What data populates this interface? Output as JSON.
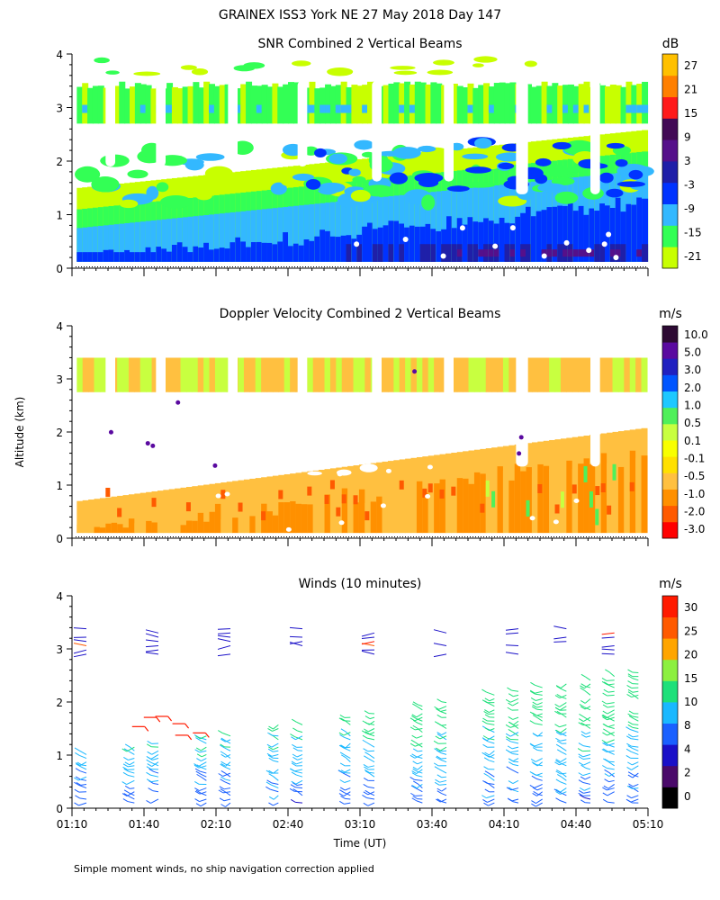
{
  "figure": {
    "title": "GRAINEX ISS3 York NE  27 May 2018 Day 147",
    "footnote": "Simple moment winds, no ship navigation correction applied",
    "xlabel": "Time (UT)",
    "ylabel": "Altitude (km)"
  },
  "chart_data": [
    {
      "type": "heatmap",
      "title": "SNR Combined 2 Vertical Beams",
      "xlabel": "Time (UT)",
      "ylabel": "Altitude (km)",
      "x_range_minutes_ut": [
        70,
        310
      ],
      "ylim": [
        0,
        4
      ],
      "yticks": [
        0,
        1,
        2,
        3,
        4
      ],
      "colorbar": {
        "units": "dB",
        "labels": [
          "27",
          "21",
          "15",
          "9",
          "3",
          "-3",
          "-9",
          "-15",
          "-21"
        ],
        "colors": [
          "#c8ff00",
          "#33ff55",
          "#33b8ff",
          "#0033ff",
          "#1f1fa8",
          "#55108a",
          "#420a55",
          "#ff1a1a",
          "#ff7f00",
          "#ffc000"
        ]
      },
      "gaps_minutes_ut": [
        [
          84,
          88
        ],
        [
          105,
          109
        ],
        [
          135,
          139
        ],
        [
          164,
          168
        ],
        [
          195,
          199
        ],
        [
          225,
          229
        ],
        [
          255,
          260
        ],
        [
          286,
          290
        ]
      ],
      "layers": [
        {
          "name": "upper layer",
          "altitude_km": [
            2.5,
            3.4
          ],
          "snr_db": [
            -15,
            -9
          ]
        },
        {
          "name": "boundary layer",
          "altitude_km": [
            0.1,
            1.4
          ],
          "snr_db": [
            -9,
            9
          ]
        }
      ]
    },
    {
      "type": "heatmap",
      "title": "Doppler Velocity Combined 2 Vertical Beams",
      "xlabel": "Time (UT)",
      "ylabel": "Altitude (km)",
      "x_range_minutes_ut": [
        70,
        310
      ],
      "ylim": [
        0,
        4
      ],
      "yticks": [
        0,
        1,
        2,
        3,
        4
      ],
      "colorbar": {
        "units": "m/s",
        "labels": [
          "10.0",
          "5.0",
          "3.0",
          "2.0",
          "1.0",
          "0.5",
          "0.1",
          "-0.1",
          "-0.5",
          "-1.0",
          "-2.0",
          "-3.0"
        ],
        "colors": [
          "#ff0000",
          "#ff5a00",
          "#ff9000",
          "#ffc040",
          "#ffe000",
          "#f8ff00",
          "#c8ff40",
          "#4ff05a",
          "#1ec8ff",
          "#0055ff",
          "#2020c0",
          "#5a0aa0",
          "#2d0a33"
        ]
      },
      "layers": [
        {
          "name": "upper layer",
          "altitude_km": [
            2.6,
            3.4
          ],
          "velocity_ms": [
            -0.5,
            0.1
          ]
        },
        {
          "name": "boundary layer",
          "altitude_km": [
            0.1,
            1.5
          ],
          "velocity_ms": [
            -2.0,
            0.1
          ]
        }
      ]
    },
    {
      "type": "barbs",
      "title": "Winds (10 minutes)",
      "xlabel": "Time (UT)",
      "ylabel": "Altitude (km)",
      "x_range_minutes_ut": [
        70,
        310
      ],
      "xticks_minutes_ut": [
        70,
        100,
        130,
        160,
        190,
        220,
        250,
        280,
        310
      ],
      "xtick_labels": [
        "01:10",
        "01:40",
        "02:10",
        "02:40",
        "03:10",
        "03:40",
        "04:10",
        "04:40",
        "05:10"
      ],
      "ylim": [
        0,
        4
      ],
      "yticks": [
        0,
        1,
        2,
        3,
        4
      ],
      "colorbar": {
        "units": "m/s",
        "labels": [
          "30",
          "25",
          "20",
          "15",
          "10",
          "8",
          "4",
          "2",
          "0"
        ],
        "colors": [
          "#000000",
          "#4a0a6a",
          "#1a10c8",
          "#1a60ff",
          "#1ab8ff",
          "#1ee07a",
          "#8cf040",
          "#ffa500",
          "#ff5a00",
          "#ff1a00"
        ]
      },
      "profile_times_ut": [
        "01:16",
        "01:36",
        "01:46",
        "02:06",
        "02:16",
        "02:36",
        "02:46",
        "03:06",
        "03:16",
        "03:36",
        "03:46",
        "04:06",
        "04:16",
        "04:26",
        "04:36",
        "04:46",
        "04:56",
        "05:06"
      ]
    }
  ]
}
